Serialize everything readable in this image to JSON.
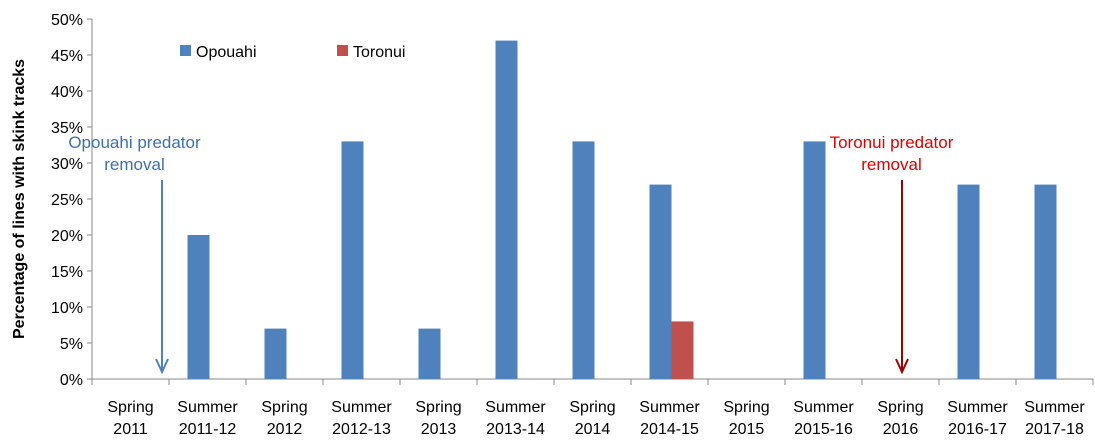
{
  "chart_data": {
    "type": "bar",
    "y_label": "Percentage of lines with skink tracks",
    "categories": [
      [
        "Spring",
        "2011"
      ],
      [
        "Summer",
        "2011-12"
      ],
      [
        "Spring",
        "2012"
      ],
      [
        "Summer",
        "2012-13"
      ],
      [
        "Spring",
        "2013"
      ],
      [
        "Summer",
        "2013-14"
      ],
      [
        "Spring",
        "2014"
      ],
      [
        "Summer",
        "2014-15"
      ],
      [
        "Spring",
        "2015"
      ],
      [
        "Summer",
        "2015-16"
      ],
      [
        "Spring",
        "2016"
      ],
      [
        "Summer",
        "2016-17"
      ],
      [
        "Summer",
        "2017-18"
      ]
    ],
    "series": [
      {
        "name": "Opouahi",
        "color": "#4f81bd",
        "values": [
          0,
          20,
          7,
          33,
          7,
          47,
          33,
          27,
          0,
          33,
          0,
          27,
          27
        ]
      },
      {
        "name": "Toronui",
        "color": "#c0504d",
        "values": [
          null,
          null,
          null,
          null,
          null,
          null,
          null,
          8,
          null,
          null,
          null,
          null,
          null
        ]
      }
    ],
    "ylim": [
      0,
      50
    ],
    "yticks": [
      {
        "value": 0,
        "label": "0%"
      },
      {
        "value": 5,
        "label": "5%"
      },
      {
        "value": 10,
        "label": "10%"
      },
      {
        "value": 15,
        "label": "15%"
      },
      {
        "value": 20,
        "label": "20%"
      },
      {
        "value": 25,
        "label": "25%"
      },
      {
        "value": 30,
        "label": "30%"
      },
      {
        "value": 35,
        "label": "35%"
      },
      {
        "value": 40,
        "label": "40%"
      },
      {
        "value": 45,
        "label": "45%"
      },
      {
        "value": 50,
        "label": "50%"
      }
    ],
    "annotations": [
      {
        "lines": [
          "Opouahi predator",
          "removal"
        ],
        "color": "#3f6fae",
        "category": 0
      },
      {
        "lines": [
          "Toronui predator",
          "removal"
        ],
        "color": "#e00000",
        "category": 10
      }
    ],
    "arrow_colors": [
      "#4f81bd",
      "#a00000"
    ]
  }
}
